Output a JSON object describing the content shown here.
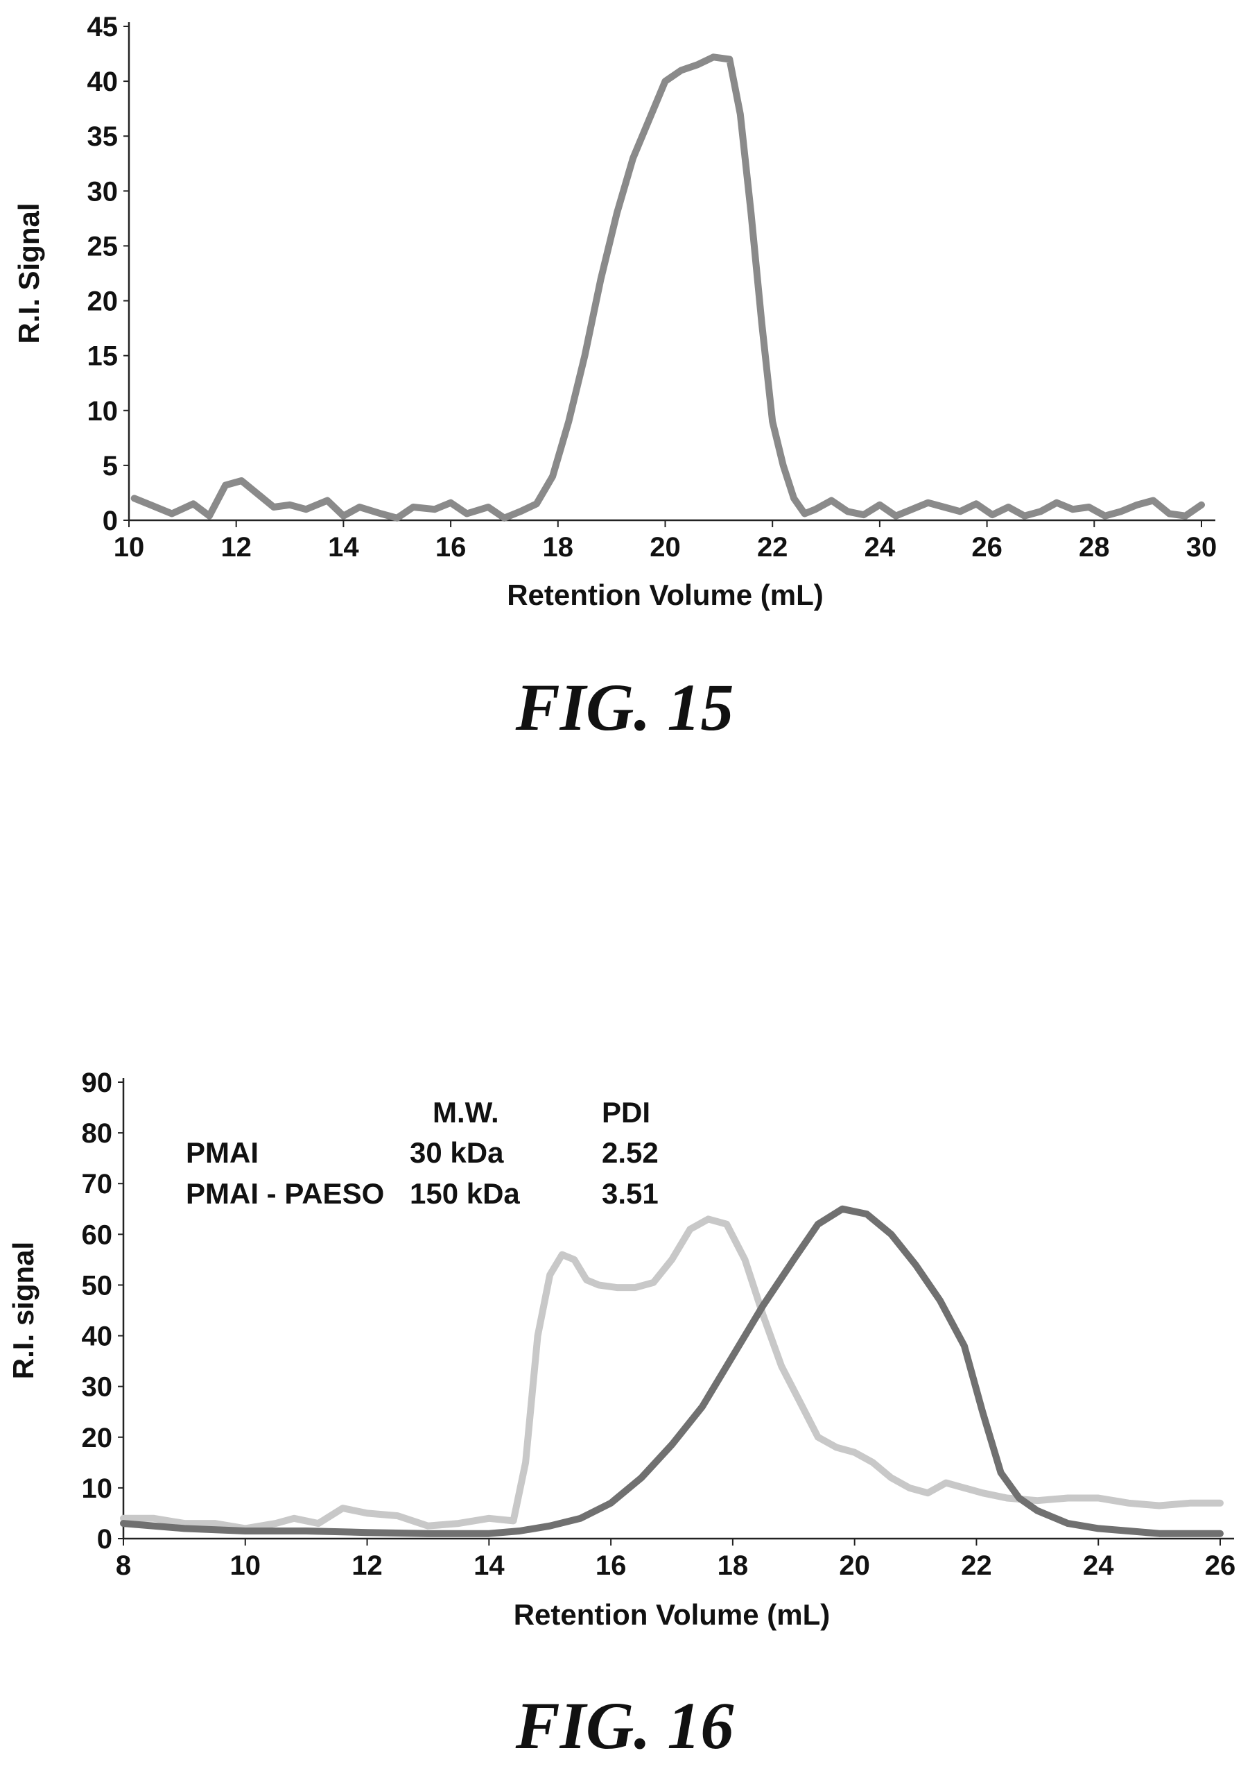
{
  "figures": [
    {
      "caption": "FIG. 15",
      "legend": null
    },
    {
      "caption": "FIG. 16",
      "legend": {
        "headers": [
          "",
          "M.W.",
          "PDI"
        ],
        "rows": [
          [
            "PMAI",
            "30 kDa",
            "2.52"
          ],
          [
            "PMAI - PAESO",
            "150 kDa",
            "3.51"
          ]
        ]
      }
    }
  ],
  "chart_data": [
    {
      "type": "line",
      "title": "",
      "xlabel": "Retention Volume (mL)",
      "ylabel": "R.I. Signal",
      "xlim": [
        10,
        30
      ],
      "ylim": [
        0,
        45
      ],
      "xticks": [
        10,
        12,
        14,
        16,
        18,
        20,
        22,
        24,
        26,
        28,
        30
      ],
      "yticks": [
        0,
        5,
        10,
        15,
        20,
        25,
        30,
        35,
        40,
        45
      ],
      "grid": false,
      "series": [
        {
          "color": "#8a8a8a",
          "x": [
            10.1,
            10.4,
            10.8,
            11.2,
            11.5,
            11.8,
            12.1,
            12.4,
            12.7,
            13.0,
            13.3,
            13.7,
            14.0,
            14.3,
            14.7,
            15.0,
            15.3,
            15.7,
            16.0,
            16.3,
            16.7,
            17.0,
            17.3,
            17.6,
            17.9,
            18.2,
            18.5,
            18.8,
            19.1,
            19.4,
            19.7,
            20.0,
            20.3,
            20.6,
            20.9,
            21.2,
            21.4,
            21.6,
            21.8,
            22.0,
            22.2,
            22.4,
            22.6,
            22.8,
            23.1,
            23.4,
            23.7,
            24.0,
            24.3,
            24.6,
            24.9,
            25.2,
            25.5,
            25.8,
            26.1,
            26.4,
            26.7,
            27.0,
            27.3,
            27.6,
            27.9,
            28.2,
            28.5,
            28.8,
            29.1,
            29.4,
            29.7,
            30.0
          ],
          "y": [
            2.0,
            1.4,
            0.6,
            1.5,
            0.4,
            3.2,
            3.6,
            2.4,
            1.2,
            1.4,
            1.0,
            1.8,
            0.4,
            1.2,
            0.6,
            0.2,
            1.2,
            1.0,
            1.6,
            0.6,
            1.2,
            0.2,
            0.8,
            1.5,
            4.0,
            9.0,
            15.0,
            22.0,
            28.0,
            33.0,
            36.5,
            40.0,
            41.0,
            41.5,
            42.2,
            42.0,
            37.0,
            28.0,
            18.0,
            9.0,
            5.0,
            2.0,
            0.6,
            1.0,
            1.8,
            0.8,
            0.5,
            1.4,
            0.4,
            1.0,
            1.6,
            1.2,
            0.8,
            1.5,
            0.5,
            1.2,
            0.4,
            0.8,
            1.6,
            1.0,
            1.2,
            0.4,
            0.8,
            1.4,
            1.8,
            0.6,
            0.4,
            1.4
          ]
        }
      ]
    },
    {
      "type": "line",
      "title": "",
      "xlabel": "Retention Volume (mL)",
      "ylabel": "R.I. signal",
      "xlim": [
        8,
        26
      ],
      "ylim": [
        0,
        90
      ],
      "xticks": [
        8,
        10,
        12,
        14,
        16,
        18,
        20,
        22,
        24,
        26
      ],
      "yticks": [
        0,
        10,
        20,
        30,
        40,
        50,
        60,
        70,
        80,
        90
      ],
      "grid": false,
      "series": [
        {
          "color": "#c8c8c8",
          "x": [
            8.0,
            8.5,
            9.0,
            9.5,
            10.0,
            10.5,
            10.8,
            11.2,
            11.6,
            12.0,
            12.5,
            13.0,
            13.5,
            14.0,
            14.4,
            14.6,
            14.8,
            15.0,
            15.2,
            15.4,
            15.6,
            15.8,
            16.1,
            16.4,
            16.7,
            17.0,
            17.3,
            17.6,
            17.9,
            18.2,
            18.5,
            18.8,
            19.1,
            19.4,
            19.7,
            20.0,
            20.3,
            20.6,
            20.9,
            21.2,
            21.5,
            21.8,
            22.1,
            22.5,
            23.0,
            23.5,
            24.0,
            24.5,
            25.0,
            25.5,
            26.0
          ],
          "y": [
            4.0,
            4.0,
            3.0,
            3.0,
            2.0,
            3.0,
            4.0,
            3.0,
            6.0,
            5.0,
            4.5,
            2.5,
            3.0,
            4.0,
            3.5,
            15.0,
            40.0,
            52.0,
            56.0,
            55.0,
            51.0,
            50.0,
            49.5,
            49.5,
            50.5,
            55.0,
            61.0,
            63.0,
            62.0,
            55.0,
            44.0,
            34.0,
            27.0,
            20.0,
            18.0,
            17.0,
            15.0,
            12.0,
            10.0,
            9.0,
            11.0,
            10.0,
            9.0,
            8.0,
            7.5,
            8.0,
            8.0,
            7.0,
            6.5,
            7.0,
            7.0
          ]
        },
        {
          "color": "#707070",
          "x": [
            8.0,
            9.0,
            10.0,
            11.0,
            12.0,
            13.0,
            14.0,
            14.5,
            15.0,
            15.5,
            16.0,
            16.5,
            17.0,
            17.5,
            18.0,
            18.5,
            19.0,
            19.4,
            19.8,
            20.2,
            20.6,
            21.0,
            21.4,
            21.8,
            22.1,
            22.4,
            22.7,
            23.0,
            23.5,
            24.0,
            24.5,
            25.0,
            25.5,
            26.0
          ],
          "y": [
            3.0,
            2.0,
            1.5,
            1.5,
            1.2,
            1.0,
            1.0,
            1.5,
            2.5,
            4.0,
            7.0,
            12.0,
            18.5,
            26.0,
            36.0,
            46.0,
            55.0,
            62.0,
            65.0,
            64.0,
            60.0,
            54.0,
            47.0,
            38.0,
            25.0,
            13.0,
            8.0,
            5.5,
            3.0,
            2.0,
            1.5,
            1.0,
            1.0,
            1.0
          ]
        }
      ]
    }
  ]
}
